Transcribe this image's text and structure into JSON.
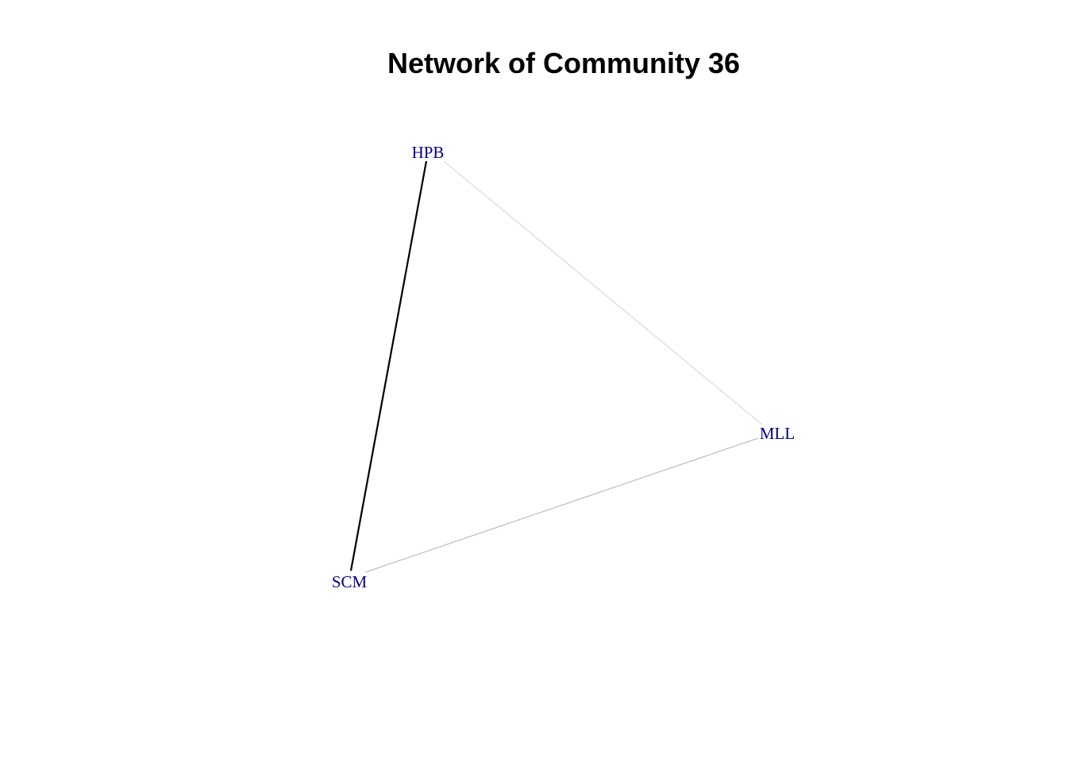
{
  "title": "Network of Community 36",
  "label_color": "#00008B",
  "nodes": [
    {
      "id": "HPB",
      "label": "HPB"
    },
    {
      "id": "MLL",
      "label": "MLL"
    },
    {
      "id": "SCM",
      "label": "SCM"
    }
  ],
  "edges": [
    {
      "source": "HPB",
      "target": "SCM",
      "color": "#000000",
      "weight": "strong"
    },
    {
      "source": "HPB",
      "target": "MLL",
      "color": "#d3d3d3",
      "weight": "weak"
    },
    {
      "source": "MLL",
      "target": "SCM",
      "color": "#b0b0b0",
      "weight": "weak"
    }
  ]
}
